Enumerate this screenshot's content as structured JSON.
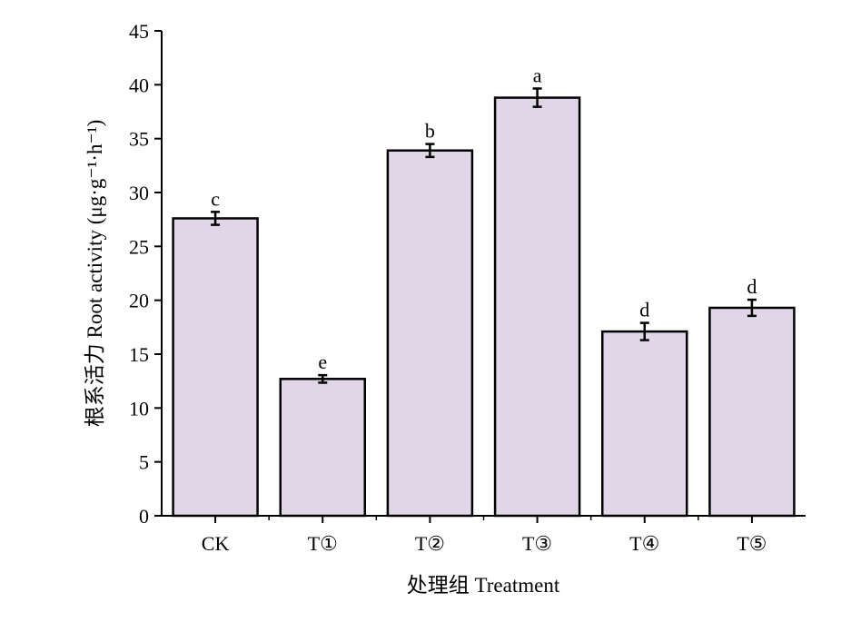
{
  "chart_data": {
    "type": "bar",
    "categories": [
      "CK",
      "T①",
      "T②",
      "T③",
      "T④",
      "T⑤"
    ],
    "values": [
      27.6,
      12.7,
      33.9,
      38.8,
      17.1,
      19.3
    ],
    "errors": [
      0.6,
      0.35,
      0.6,
      0.85,
      0.8,
      0.75
    ],
    "significance": [
      "c",
      "e",
      "b",
      "a",
      "d",
      "d"
    ],
    "xlabel": "处理组 Treatment",
    "ylabel": "根系活力 Root activity (μg·g⁻¹·h⁻¹)",
    "ylim": [
      0,
      45
    ],
    "yticks": [
      0,
      5,
      10,
      15,
      20,
      25,
      30,
      35,
      40,
      45
    ],
    "bar_color": "#e0d6e8",
    "bar_edge_color": "#000000",
    "grid": false,
    "legend": false
  }
}
